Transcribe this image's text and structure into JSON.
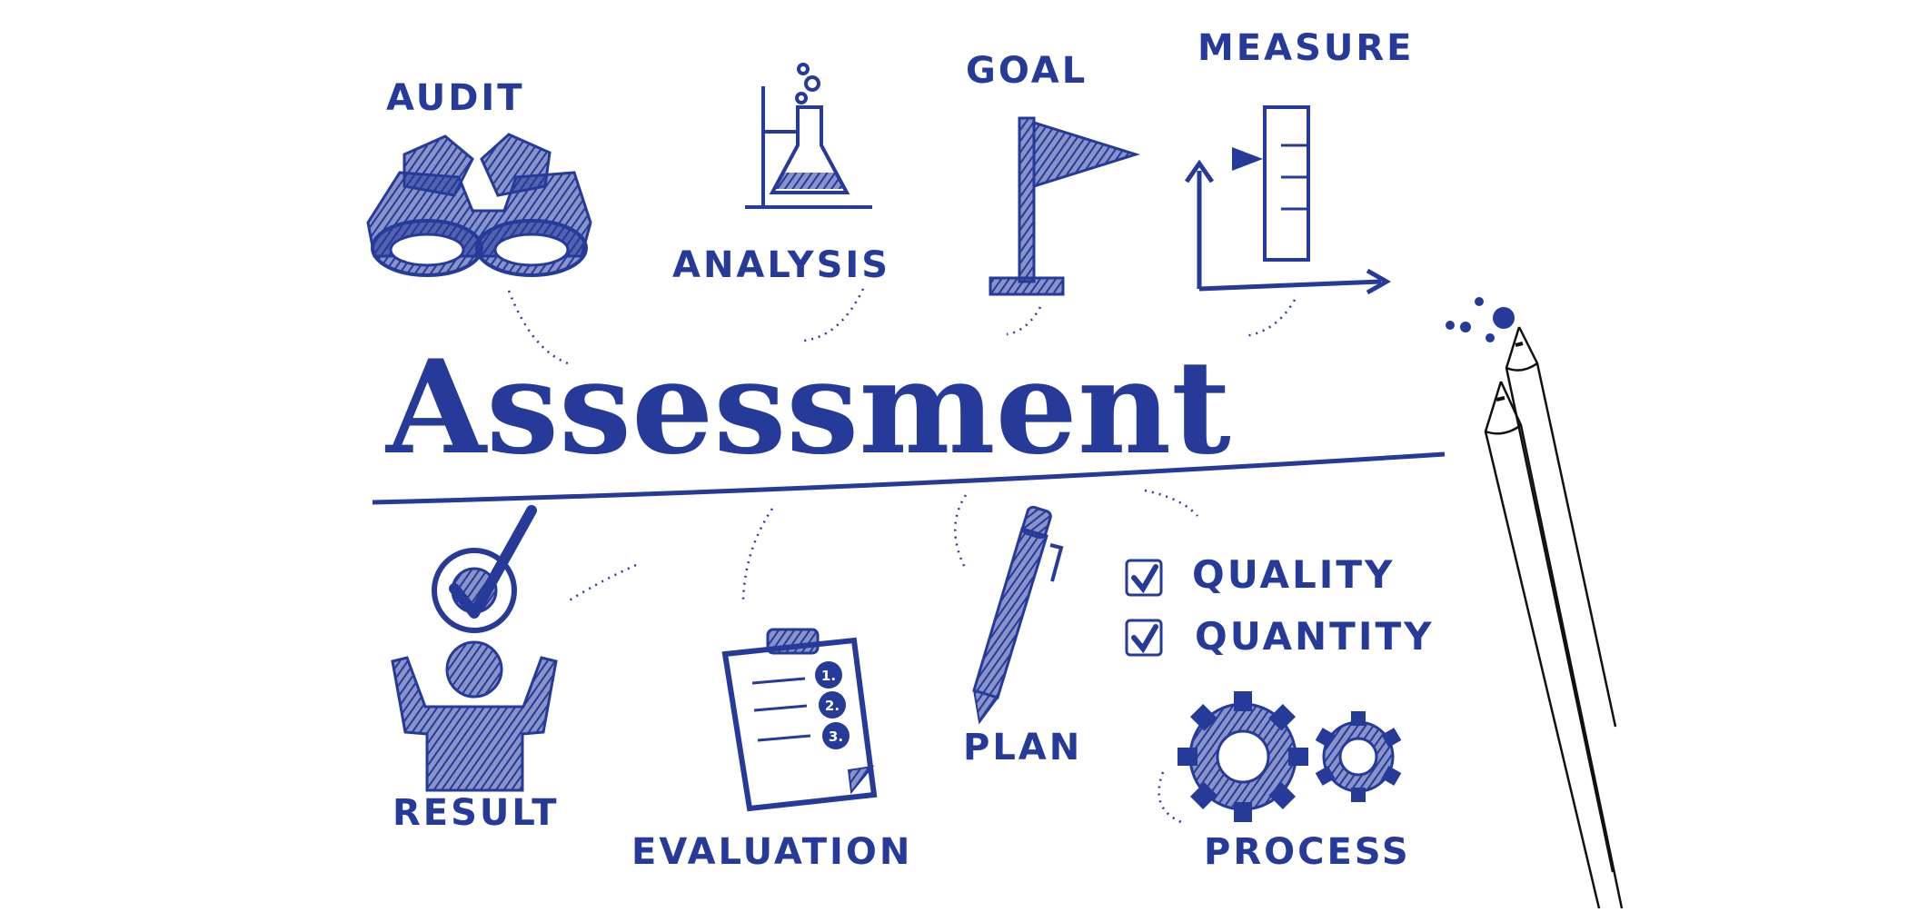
{
  "title": "Assessment",
  "labels": {
    "audit": "AUDIT",
    "analysis": "ANALYSIS",
    "goal": "GOAL",
    "measure": "MEASURE",
    "result": "RESULT",
    "evaluation": "EVALUATION",
    "plan": "PLAN",
    "quality": "QUALITY",
    "quantity": "QUANTITY",
    "process": "PROCESS"
  },
  "checklist_numbers": [
    "1.",
    "2.",
    "3."
  ],
  "colors": {
    "ink": "#263a9a",
    "pencil": "#111111",
    "background": "#ffffff"
  }
}
